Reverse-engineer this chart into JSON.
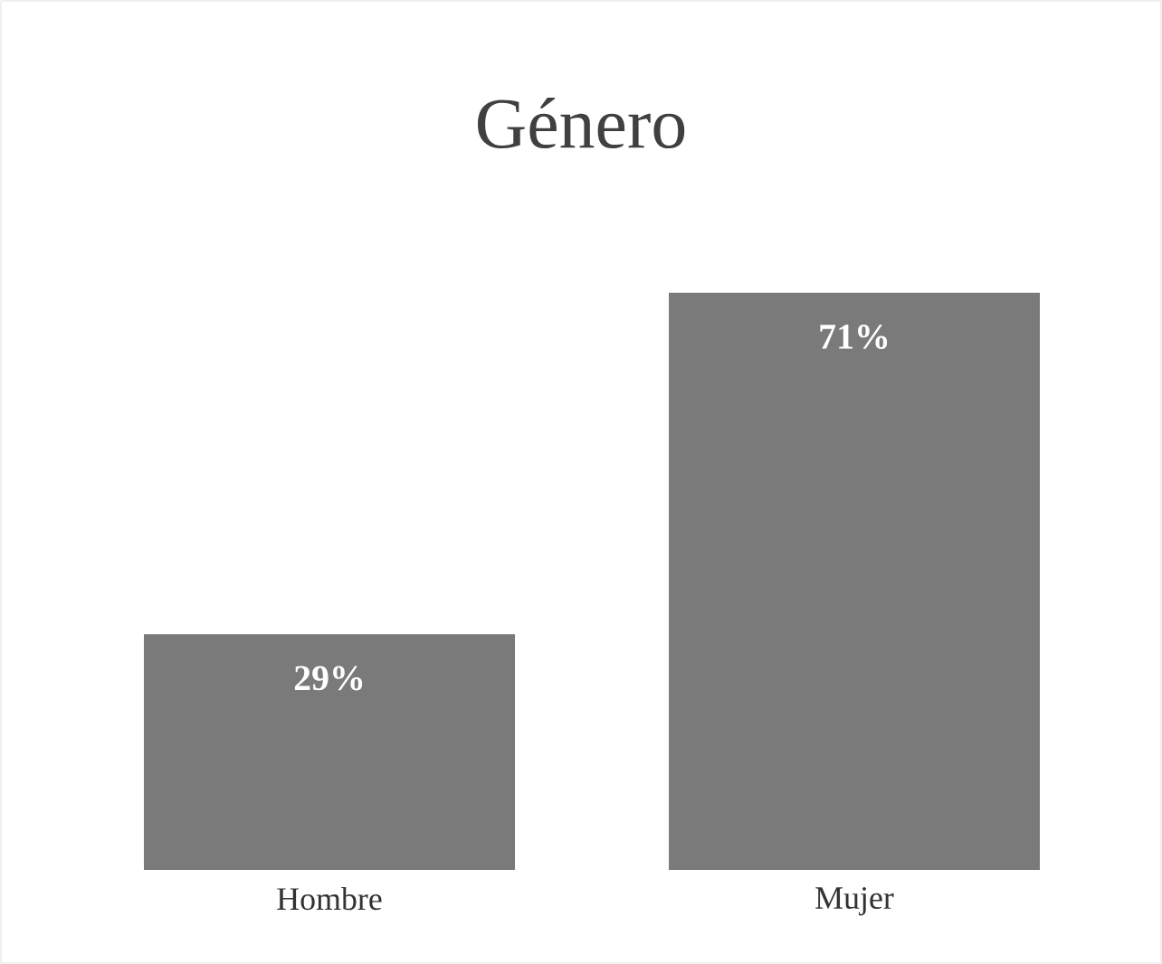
{
  "chart_data": {
    "type": "bar",
    "title": "Género",
    "categories": [
      "Hombre",
      "Mujer"
    ],
    "values": [
      29,
      71
    ],
    "value_labels": [
      "29%",
      "71%"
    ],
    "color": "#7a7a7a"
  }
}
